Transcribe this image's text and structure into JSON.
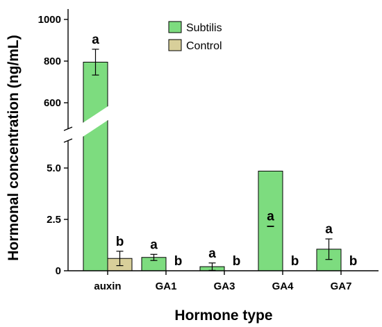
{
  "chart_data": {
    "type": "bar",
    "xlabel": "Hormone type",
    "ylabel": "Hormonal concentration (ng/mL)",
    "categories": [
      "auxin",
      "GA1",
      "GA3",
      "GA4",
      "GA7"
    ],
    "axis_break": {
      "lower_range": [
        0,
        6
      ],
      "upper_range": [
        500,
        1000
      ]
    },
    "lower_ticks": [
      "0",
      "2.5",
      "5.0"
    ],
    "upper_ticks": [
      "600",
      "800",
      "1000"
    ],
    "lower_tick_values": [
      0,
      2.5,
      5.0
    ],
    "upper_tick_values": [
      600,
      800,
      1000
    ],
    "legend_position": "top-center",
    "series": [
      {
        "name": "Subtilis",
        "color": "#7ddc7f",
        "values": [
          795,
          0.65,
          0.2,
          4.85,
          1.05
        ],
        "error": [
          62,
          0.15,
          0.18,
          2.7,
          0.5
        ],
        "labels": [
          "a",
          "a",
          "a",
          "a",
          "a"
        ]
      },
      {
        "name": "Control",
        "color": "#d8cf9a",
        "values": [
          0.6,
          0,
          0,
          0,
          0
        ],
        "error": [
          0.35,
          0,
          0,
          0,
          0
        ],
        "labels": [
          "b",
          "b",
          "b",
          "b",
          "b"
        ]
      }
    ]
  }
}
